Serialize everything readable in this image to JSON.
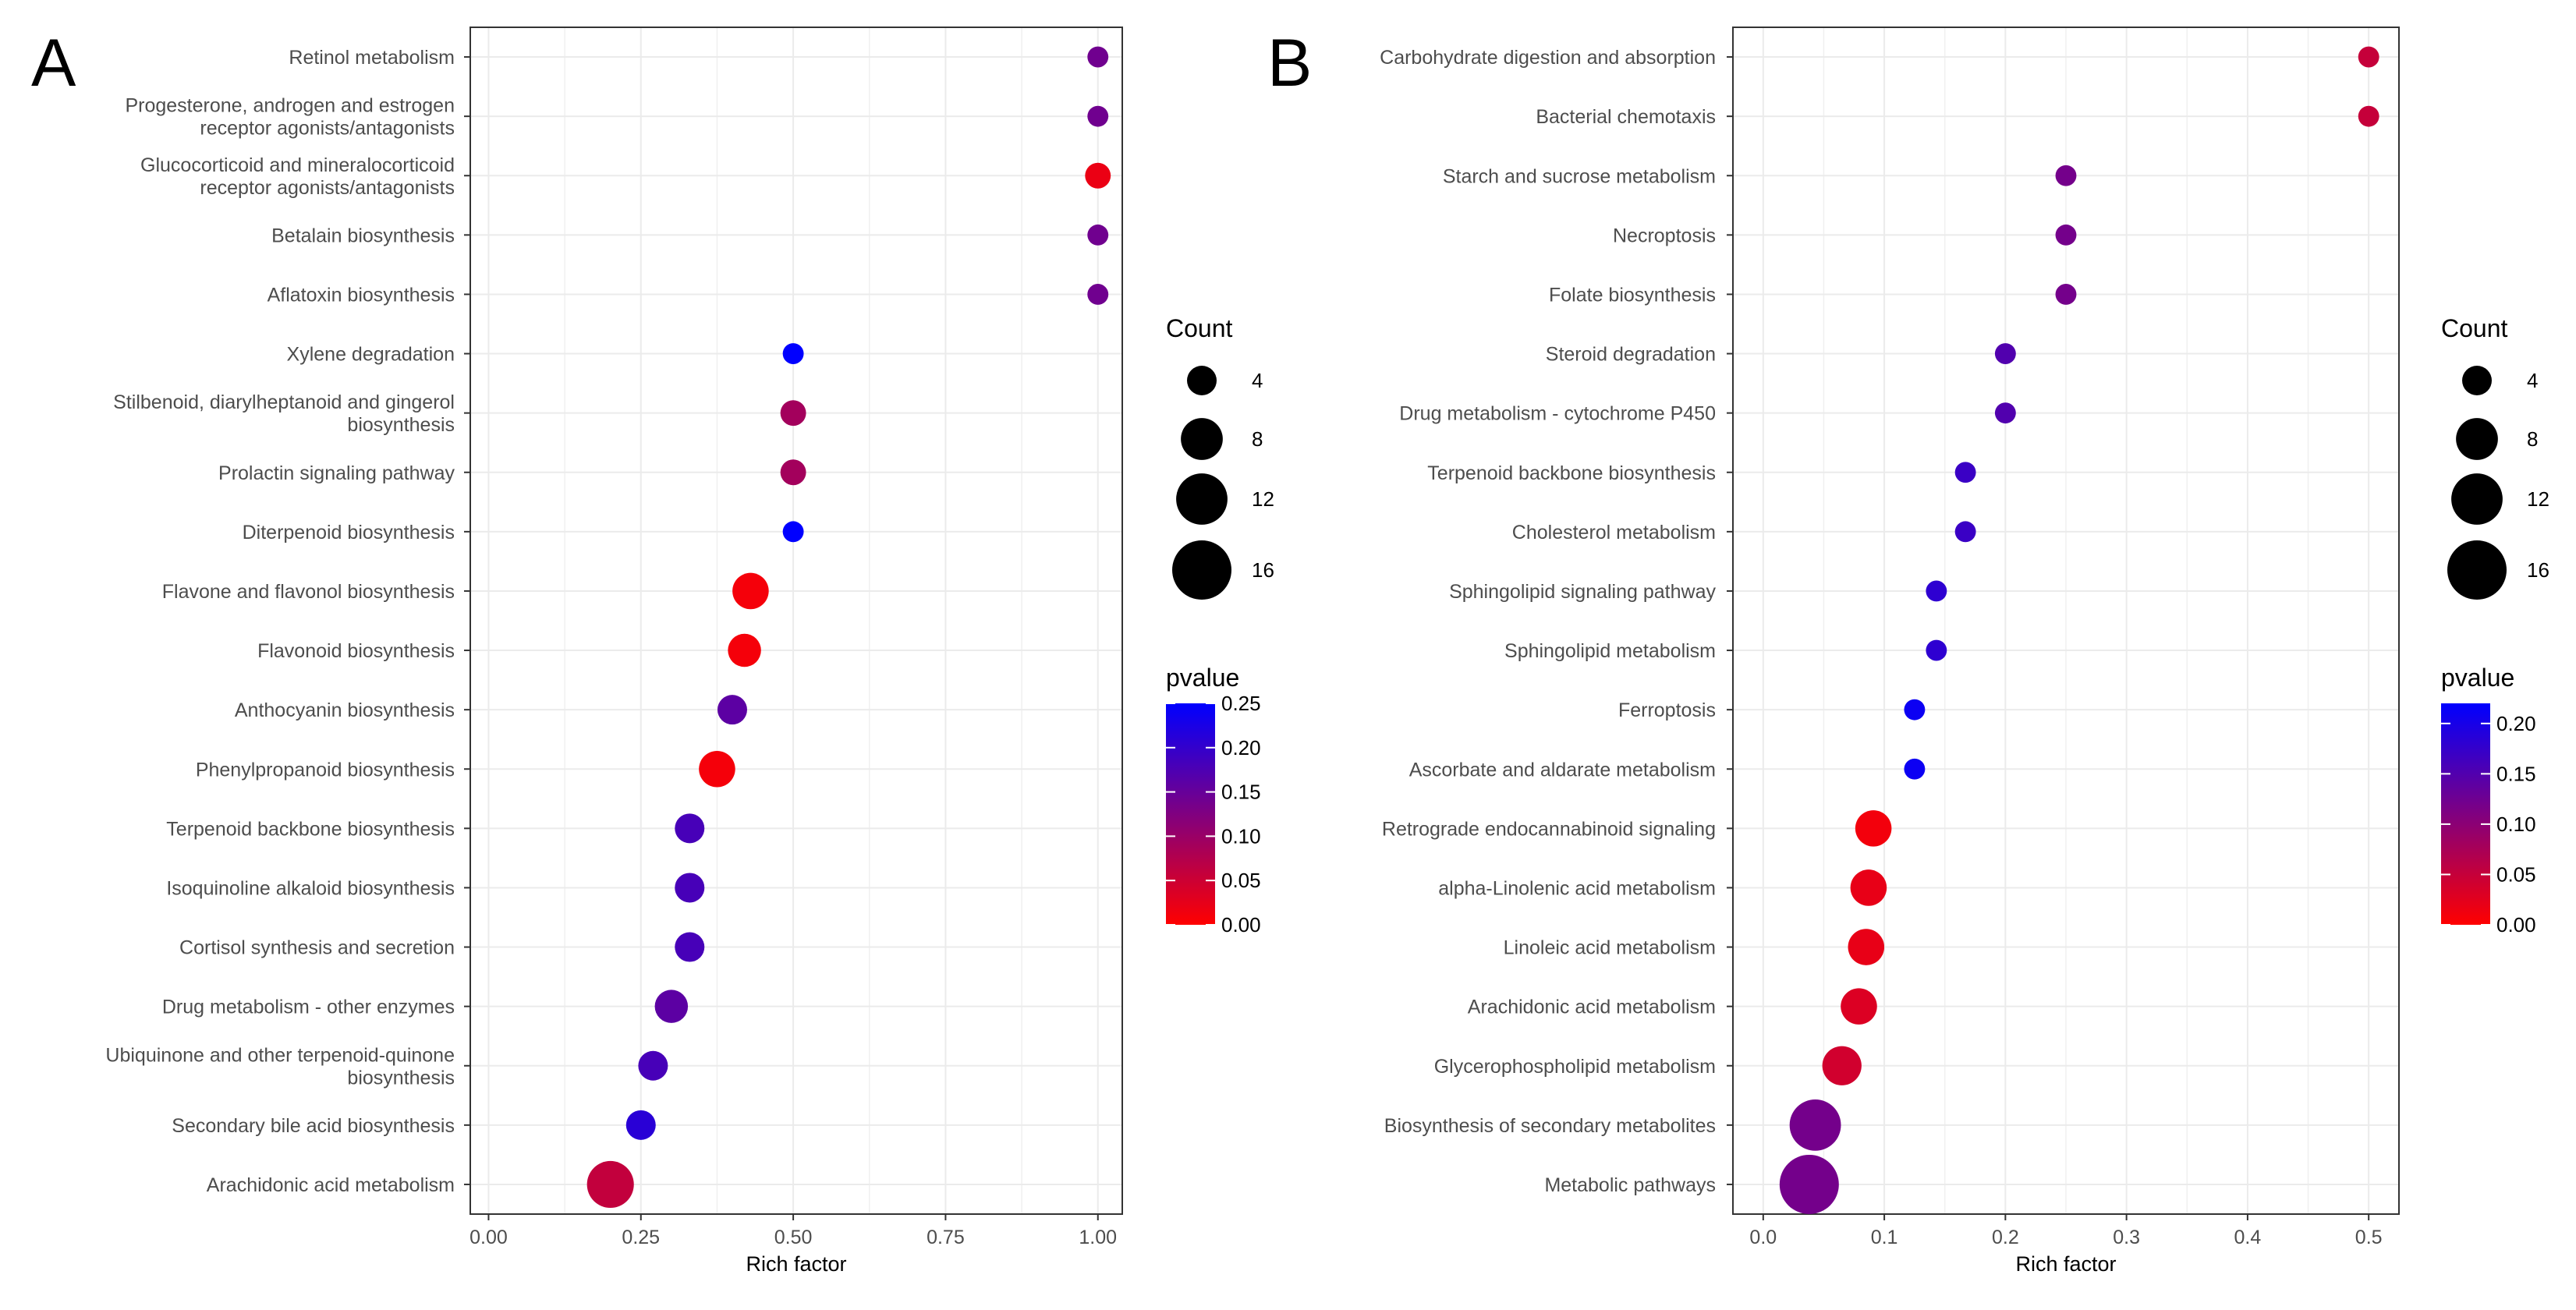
{
  "chart_data": [
    {
      "type": "scatter",
      "panel": "A",
      "title": "",
      "xlabel": "Rich factor",
      "ylabel": "",
      "xlim": [
        -0.03,
        1.04
      ],
      "xticks": [
        "0.00",
        "0.25",
        "0.50",
        "0.75",
        "1.00"
      ],
      "xtick_values": [
        0,
        0.25,
        0.5,
        0.75,
        1.0
      ],
      "grid": true,
      "legend_position": "right",
      "size_legend": {
        "title": "Count",
        "values": [
          4,
          8,
          12,
          16
        ],
        "labels": [
          "4",
          "8",
          "12",
          "16"
        ]
      },
      "color_legend": {
        "title": "pvalue",
        "min": 0,
        "max": 0.25,
        "ticks": [
          0.25,
          0.2,
          0.15,
          0.1,
          0.05,
          0
        ],
        "labels": [
          "0.25",
          "0.20",
          "0.15",
          "0.10",
          "0.05",
          "0.00"
        ],
        "low_color": "#ff0000",
        "high_color": "#0000ff"
      },
      "points": [
        {
          "pathway": "Retinol metabolism",
          "rich_factor": 1.0,
          "count": 2,
          "pvalue": 0.14
        },
        {
          "pathway": "Progesterone, androgen and estrogen\nreceptor agonists/antagonists",
          "rich_factor": 1.0,
          "count": 2,
          "pvalue": 0.14
        },
        {
          "pathway": "Glucocorticoid and mineralocorticoid\nreceptor agonists/antagonists",
          "rich_factor": 1.0,
          "count": 3,
          "pvalue": 0.02
        },
        {
          "pathway": "Betalain biosynthesis",
          "rich_factor": 1.0,
          "count": 2,
          "pvalue": 0.14
        },
        {
          "pathway": "Aflatoxin biosynthesis",
          "rich_factor": 1.0,
          "count": 2,
          "pvalue": 0.14
        },
        {
          "pathway": "Xylene degradation",
          "rich_factor": 0.5,
          "count": 2,
          "pvalue": 0.25
        },
        {
          "pathway": "Stilbenoid, diarylheptanoid and gingerol\nbiosynthesis",
          "rich_factor": 0.5,
          "count": 3,
          "pvalue": 0.09
        },
        {
          "pathway": "Prolactin signaling pathway",
          "rich_factor": 0.5,
          "count": 3,
          "pvalue": 0.09
        },
        {
          "pathway": "Diterpenoid biosynthesis",
          "rich_factor": 0.5,
          "count": 2,
          "pvalue": 0.25
        },
        {
          "pathway": "Flavone and flavonol biosynthesis",
          "rich_factor": 0.43,
          "count": 6,
          "pvalue": 0.01
        },
        {
          "pathway": "Flavonoid biosynthesis",
          "rich_factor": 0.42,
          "count": 5,
          "pvalue": 0.01
        },
        {
          "pathway": "Anthocyanin biosynthesis",
          "rich_factor": 0.4,
          "count": 4,
          "pvalue": 0.16
        },
        {
          "pathway": "Phenylpropanoid biosynthesis",
          "rich_factor": 0.375,
          "count": 6,
          "pvalue": 0.01
        },
        {
          "pathway": "Terpenoid backbone biosynthesis",
          "rich_factor": 0.33,
          "count": 4,
          "pvalue": 0.18
        },
        {
          "pathway": "Isoquinoline alkaloid biosynthesis",
          "rich_factor": 0.33,
          "count": 4,
          "pvalue": 0.18
        },
        {
          "pathway": "Cortisol synthesis and secretion",
          "rich_factor": 0.33,
          "count": 4,
          "pvalue": 0.18
        },
        {
          "pathway": "Drug metabolism - other enzymes",
          "rich_factor": 0.3,
          "count": 5,
          "pvalue": 0.16
        },
        {
          "pathway": "Ubiquinone and other terpenoid-quinone\nbiosynthesis",
          "rich_factor": 0.27,
          "count": 4,
          "pvalue": 0.18
        },
        {
          "pathway": "Secondary bile acid biosynthesis",
          "rich_factor": 0.25,
          "count": 4,
          "pvalue": 0.21
        },
        {
          "pathway": "Arachidonic acid metabolism",
          "rich_factor": 0.2,
          "count": 10,
          "pvalue": 0.06
        }
      ]
    },
    {
      "type": "scatter",
      "panel": "B",
      "title": "",
      "xlabel": "Rich factor",
      "ylabel": "",
      "xlim": [
        -0.025,
        0.525
      ],
      "xticks": [
        "0.0",
        "0.1",
        "0.2",
        "0.3",
        "0.4",
        "0.5"
      ],
      "xtick_values": [
        0,
        0.1,
        0.2,
        0.3,
        0.4,
        0.5
      ],
      "grid": true,
      "legend_position": "right",
      "size_legend": {
        "title": "Count",
        "values": [
          4,
          8,
          12,
          16
        ],
        "labels": [
          "4",
          "8",
          "12",
          "16"
        ]
      },
      "color_legend": {
        "title": "pvalue",
        "min": 0,
        "max": 0.22,
        "ticks": [
          0.2,
          0.15,
          0.1,
          0.05,
          0
        ],
        "labels": [
          "0.20",
          "0.15",
          "0.10",
          "0.05",
          "0.00"
        ],
        "low_color": "#ff0000",
        "high_color": "#0000ff"
      },
      "points": [
        {
          "pathway": "Carbohydrate digestion and absorption",
          "rich_factor": 0.5,
          "count": 2,
          "pvalue": 0.05
        },
        {
          "pathway": "Bacterial chemotaxis",
          "rich_factor": 0.5,
          "count": 2,
          "pvalue": 0.05
        },
        {
          "pathway": "Starch and sucrose metabolism",
          "rich_factor": 0.25,
          "count": 2,
          "pvalue": 0.12
        },
        {
          "pathway": "Necroptosis",
          "rich_factor": 0.25,
          "count": 2,
          "pvalue": 0.12
        },
        {
          "pathway": "Folate biosynthesis",
          "rich_factor": 0.25,
          "count": 2,
          "pvalue": 0.12
        },
        {
          "pathway": "Steroid degradation",
          "rich_factor": 0.2,
          "count": 2,
          "pvalue": 0.15
        },
        {
          "pathway": "Drug metabolism - cytochrome P450",
          "rich_factor": 0.2,
          "count": 2,
          "pvalue": 0.15
        },
        {
          "pathway": "Terpenoid backbone biosynthesis",
          "rich_factor": 0.167,
          "count": 2,
          "pvalue": 0.17
        },
        {
          "pathway": "Cholesterol metabolism",
          "rich_factor": 0.167,
          "count": 2,
          "pvalue": 0.17
        },
        {
          "pathway": "Sphingolipid signaling pathway",
          "rich_factor": 0.143,
          "count": 2,
          "pvalue": 0.18
        },
        {
          "pathway": "Sphingolipid metabolism",
          "rich_factor": 0.143,
          "count": 2,
          "pvalue": 0.18
        },
        {
          "pathway": "Ferroptosis",
          "rich_factor": 0.125,
          "count": 2,
          "pvalue": 0.21
        },
        {
          "pathway": "Ascorbate and aldarate metabolism",
          "rich_factor": 0.125,
          "count": 2,
          "pvalue": 0.21
        },
        {
          "pathway": "Retrograde endocannabinoid signaling",
          "rich_factor": 0.091,
          "count": 6,
          "pvalue": 0.01
        },
        {
          "pathway": "alpha-Linolenic acid metabolism",
          "rich_factor": 0.087,
          "count": 6,
          "pvalue": 0.02
        },
        {
          "pathway": "Linoleic acid metabolism",
          "rich_factor": 0.085,
          "count": 6,
          "pvalue": 0.02
        },
        {
          "pathway": "Arachidonic acid metabolism",
          "rich_factor": 0.079,
          "count": 6,
          "pvalue": 0.03
        },
        {
          "pathway": "Glycerophospholipid metabolism",
          "rich_factor": 0.065,
          "count": 7,
          "pvalue": 0.04
        },
        {
          "pathway": "Biosynthesis of secondary metabolites",
          "rich_factor": 0.043,
          "count": 12,
          "pvalue": 0.12
        },
        {
          "pathway": "Metabolic pathways",
          "rich_factor": 0.038,
          "count": 16,
          "pvalue": 0.12
        }
      ]
    }
  ]
}
